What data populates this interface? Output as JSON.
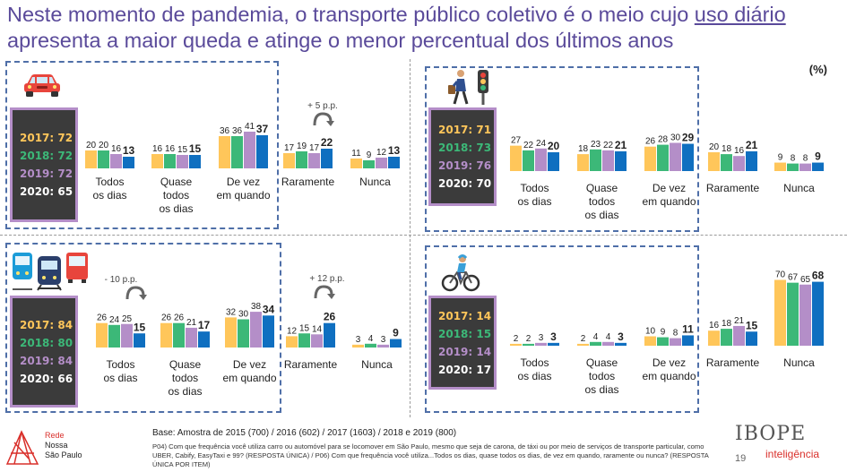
{
  "header": {
    "title_part1": "Neste momento de pandemia, o transporte público coletivo é o meio cujo ",
    "title_underlined": "uso diário",
    "title_part2": " apresenta a maior queda e atinge o menor percentual dos últimos anos",
    "unit_note": "(%)"
  },
  "colors": {
    "2017": "#ffc65a",
    "2018": "#3cb878",
    "2019": "#b48ec8",
    "2020": "#0f6fc0",
    "title": "#5a4a9a",
    "panel_border": "#4f6fa8"
  },
  "icons": {
    "car": "car-icon",
    "walker": "pedestrian-traffic-light-icon",
    "public_transport": "train-bus-icon",
    "bike": "cyclist-icon"
  },
  "chart_data": [
    {
      "type": "bar",
      "panel": "car",
      "categories": [
        "Todos os dias",
        "Quase todos os dias",
        "De vez em quando",
        "Raramente",
        "Nunca"
      ],
      "series": [
        {
          "name": "2017",
          "values": [
            20,
            16,
            36,
            17,
            11
          ]
        },
        {
          "name": "2018",
          "values": [
            20,
            16,
            36,
            19,
            9
          ]
        },
        {
          "name": "2019",
          "values": [
            16,
            15,
            41,
            17,
            12
          ]
        },
        {
          "name": "2020",
          "values": [
            13,
            15,
            37,
            22,
            13
          ]
        }
      ],
      "year_totals": [
        "2017: 72",
        "2018: 72",
        "2019: 72",
        "2020: 65"
      ],
      "annotations": [
        {
          "category": "Raramente",
          "text": "+ 5 p.p."
        }
      ]
    },
    {
      "type": "bar",
      "panel": "walking",
      "categories": [
        "Todos os dias",
        "Quase todos os dias",
        "De vez em quando",
        "Raramente",
        "Nunca"
      ],
      "series": [
        {
          "name": "2017",
          "values": [
            27,
            18,
            26,
            20,
            9
          ]
        },
        {
          "name": "2018",
          "values": [
            22,
            23,
            28,
            18,
            8
          ]
        },
        {
          "name": "2019",
          "values": [
            24,
            22,
            30,
            16,
            8
          ]
        },
        {
          "name": "2020",
          "values": [
            20,
            21,
            29,
            21,
            9
          ]
        }
      ],
      "year_totals": [
        "2017: 71",
        "2018: 73",
        "2019: 76",
        "2020: 70"
      ],
      "annotations": []
    },
    {
      "type": "bar",
      "panel": "public_transport",
      "categories": [
        "Todos os dias",
        "Quase todos os dias",
        "De vez em quando",
        "Raramente",
        "Nunca"
      ],
      "series": [
        {
          "name": "2017",
          "values": [
            26,
            26,
            32,
            12,
            3
          ]
        },
        {
          "name": "2018",
          "values": [
            24,
            26,
            30,
            15,
            4
          ]
        },
        {
          "name": "2019",
          "values": [
            25,
            21,
            38,
            14,
            3
          ]
        },
        {
          "name": "2020",
          "values": [
            15,
            17,
            34,
            26,
            9
          ]
        }
      ],
      "year_totals": [
        "2017: 84",
        "2018: 80",
        "2019: 84",
        "2020: 66"
      ],
      "annotations": [
        {
          "category": "Todos os dias",
          "text": "- 10 p.p."
        },
        {
          "category": "Raramente",
          "text": "+ 12 p.p."
        }
      ]
    },
    {
      "type": "bar",
      "panel": "bike",
      "categories": [
        "Todos os dias",
        "Quase todos os dias",
        "De vez em quando",
        "Raramente",
        "Nunca"
      ],
      "series": [
        {
          "name": "2017",
          "values": [
            2,
            2,
            10,
            16,
            70
          ]
        },
        {
          "name": "2018",
          "values": [
            2,
            4,
            9,
            18,
            67
          ]
        },
        {
          "name": "2019",
          "values": [
            3,
            4,
            8,
            21,
            65
          ]
        },
        {
          "name": "2020",
          "values": [
            3,
            3,
            11,
            15,
            68
          ]
        }
      ],
      "year_totals": [
        "2017: 14",
        "2018: 15",
        "2019: 14",
        "2020: 17"
      ],
      "annotations": []
    }
  ],
  "footer": {
    "base": "Base: Amostra de 2015 (700) / 2016 (602) / 2017 (1603) / 2018 e 2019 (800)",
    "question": "P04) Com que frequência você utiliza carro ou automóvel para se locomover em São Paulo, mesmo que seja de carona, de táxi ou por meio de serviços de transporte particular, como UBER, Cabify, EasyTaxi e 99? (RESPOSTA ÚNICA) / P06) Com que frequência você utiliza...Todos os dias, quase todos os dias, de vez em quando, raramente ou nunca? (RESPOSTA ÚNICA POR ITEM)",
    "org_line1": "Rede",
    "org_line2": "Nossa",
    "org_line3": "São Paulo",
    "brand": "IBOPE",
    "brand_sub": "inteligência",
    "page": "19"
  }
}
